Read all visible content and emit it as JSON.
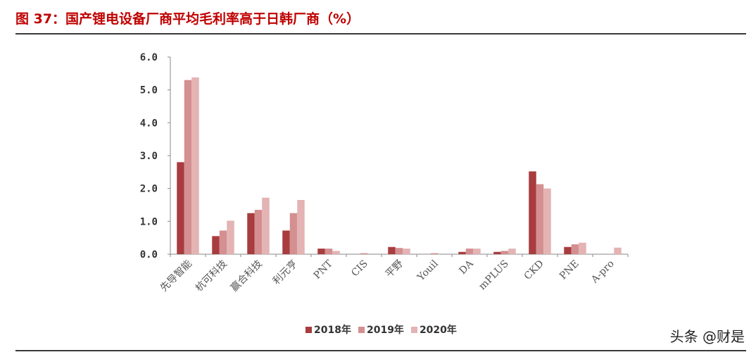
{
  "header": {
    "title": "图 37：国产锂电设备厂商平均毛利率高于日韩厂商（%）"
  },
  "watermark": "头条 @财是",
  "colors": {
    "title": "#c00000",
    "series_2018": "#a83c3e",
    "series_2019": "#d48f91",
    "series_2020": "#e4b3b4"
  },
  "chart_data": {
    "type": "bar",
    "title": "图 37：国产锂电设备厂商平均毛利率高于日韩厂商（%）",
    "categories": [
      "先导智能",
      "杭可科技",
      "赢合科技",
      "利元亨",
      "PNT",
      "CIS",
      "平野",
      "Youil",
      "DA",
      "mPLUS",
      "CKD",
      "PNE",
      "A-pro"
    ],
    "series": [
      {
        "name": "2018年",
        "values": [
          2.8,
          0.55,
          1.25,
          0.72,
          0.17,
          0.0,
          0.22,
          0.0,
          0.07,
          0.07,
          2.52,
          0.22,
          0.0
        ]
      },
      {
        "name": "2019年",
        "values": [
          5.3,
          0.72,
          1.35,
          1.25,
          0.17,
          0.03,
          0.19,
          0.03,
          0.17,
          0.1,
          2.13,
          0.3,
          0.0
        ]
      },
      {
        "name": "2020年",
        "values": [
          5.38,
          1.02,
          1.72,
          1.65,
          0.1,
          0.0,
          0.17,
          0.0,
          0.17,
          0.17,
          2.0,
          0.35,
          0.2
        ]
      }
    ],
    "yticks": [
      "0.0",
      "1.0",
      "2.0",
      "3.0",
      "4.0",
      "5.0",
      "6.0"
    ],
    "ylim": [
      0,
      6
    ],
    "xlabel": "",
    "ylabel": "",
    "grid": false,
    "legend": "bottom"
  }
}
